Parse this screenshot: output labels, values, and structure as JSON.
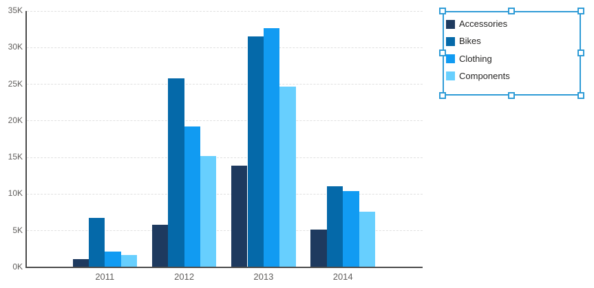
{
  "chart_data": {
    "type": "bar",
    "title": "",
    "xlabel": "",
    "ylabel": "",
    "categories": [
      "2011",
      "2012",
      "2013",
      "2014"
    ],
    "series": [
      {
        "name": "Accessories",
        "color": "#1e3a5f",
        "values": [
          1100,
          5800,
          13900,
          5200
        ]
      },
      {
        "name": "Bikes",
        "color": "#0569a9",
        "values": [
          6800,
          25800,
          31500,
          11100
        ]
      },
      {
        "name": "Clothing",
        "color": "#119bf2",
        "values": [
          2200,
          19200,
          32700,
          10400
        ]
      },
      {
        "name": "Components",
        "color": "#67cffe",
        "values": [
          1700,
          15200,
          24700,
          7600
        ]
      }
    ],
    "ylim": [
      0,
      35000
    ],
    "ytick_interval": 5000,
    "ytick_labels": [
      "0K",
      "5K",
      "10K",
      "15K",
      "20K",
      "25K",
      "30K",
      "35K"
    ],
    "grid": "horizontal-dashed",
    "legend_position": "floating-top-right-selected"
  },
  "colors": {
    "background": "#ffffff",
    "axis_line": "#4a4a4a",
    "gridline": "#e0e0e0",
    "tick_label": "#605e5c",
    "legend_text": "#252423",
    "selection_frame": "#2e9bd6"
  }
}
